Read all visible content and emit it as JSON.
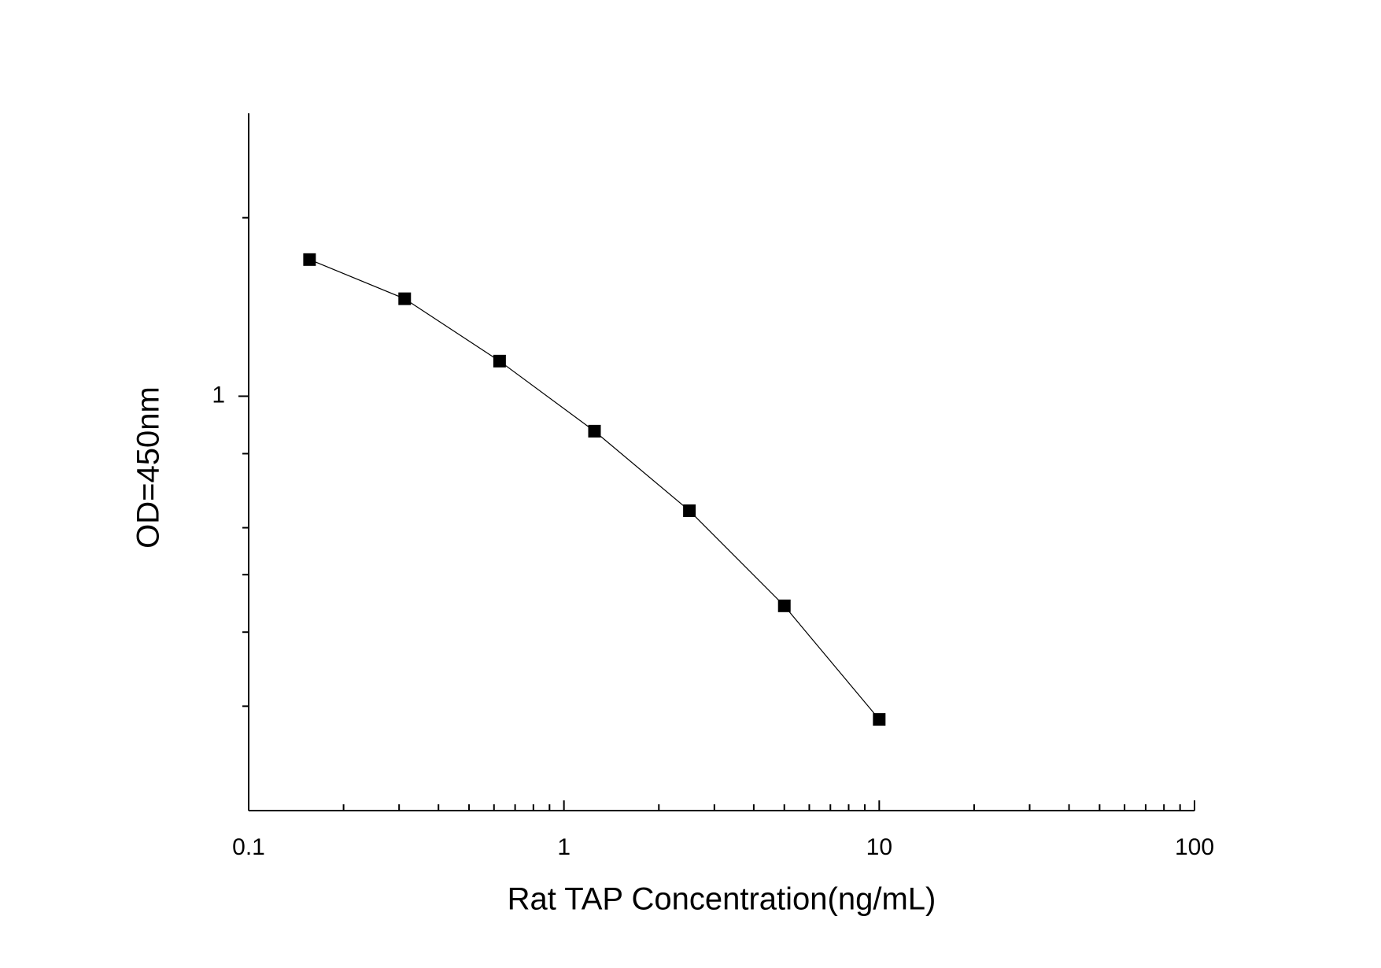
{
  "chart_data": {
    "type": "line",
    "x_label": "Rat TAP Concentration(ng/mL)",
    "y_label": "OD=450nm",
    "x_log": true,
    "y_log": true,
    "x": [
      0.156,
      0.3125,
      0.625,
      1.25,
      2.5,
      5,
      10
    ],
    "series": [
      {
        "color": "#000000",
        "values": [
          1.7,
          1.46,
          1.146,
          0.873,
          0.641,
          0.443,
          0.285
        ]
      }
    ],
    "xlim": [
      0.1,
      100
    ],
    "xticks": [
      0.1,
      1,
      10,
      100
    ],
    "x_minor_ticks": [
      0.2,
      0.3,
      0.4,
      0.5,
      0.6,
      0.7,
      0.8,
      0.9,
      2,
      3,
      4,
      5,
      6,
      7,
      8,
      9,
      20,
      30,
      40,
      50,
      60,
      70,
      80,
      90
    ],
    "ylim": [
      0.2,
      3
    ],
    "yticks": [
      1
    ],
    "y_minor_ticks": [
      0.3,
      0.4,
      0.5,
      0.6,
      0.8,
      2
    ]
  }
}
